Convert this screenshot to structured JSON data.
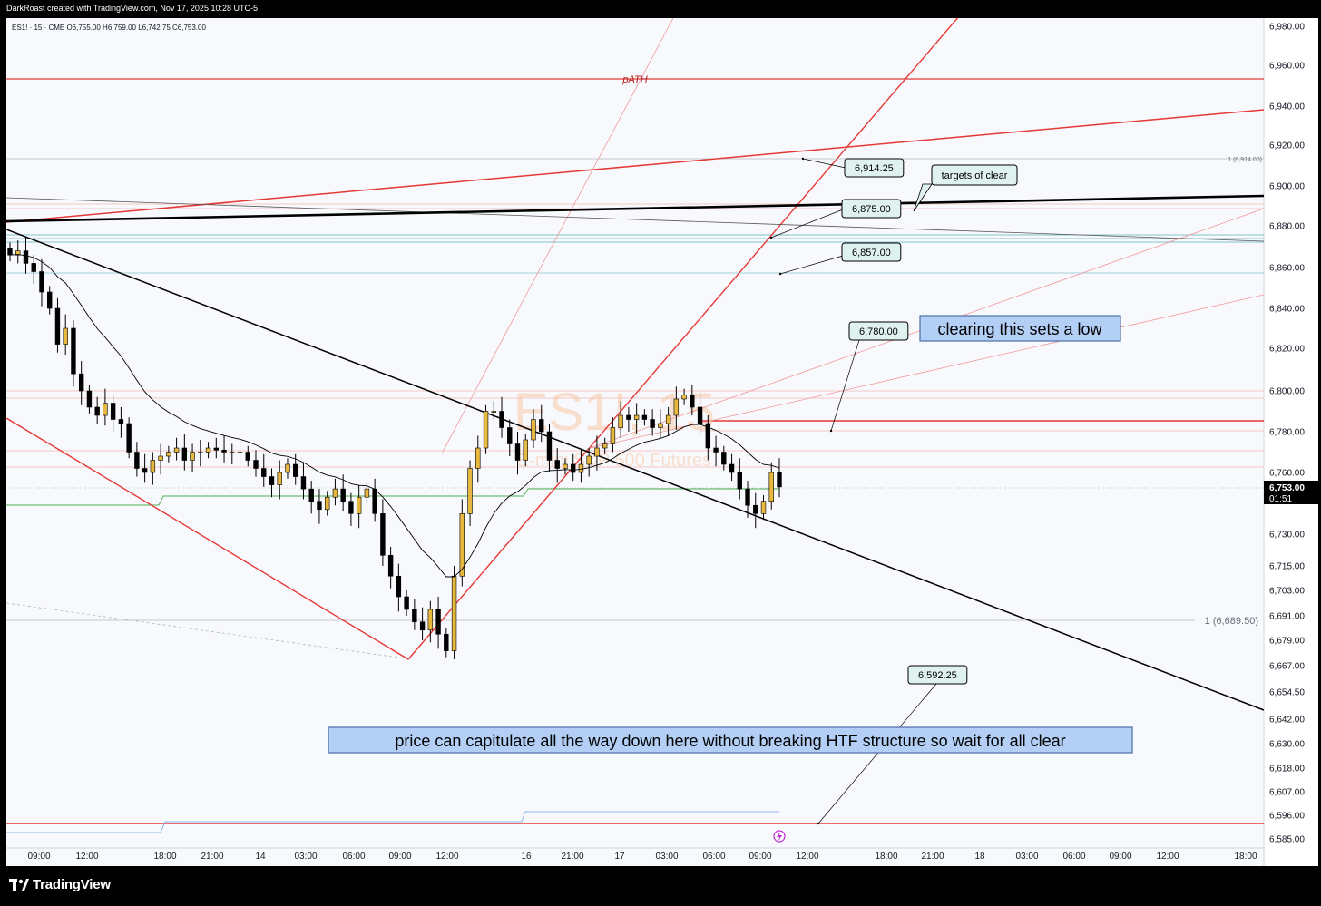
{
  "header": {
    "credit": "DarkRoast created with TradingView.com, Nov 17, 2025 10:28 UTC-5"
  },
  "legend": {
    "ohlc": "ES1! · 15 · CME  O6,755.00  H6,759.00  L6,742.75  C6,753.00"
  },
  "watermark": {
    "symbol": "ES1!, 15",
    "name": "E-mini S&P 500 Futures"
  },
  "footer": {
    "brand": "TradingView"
  },
  "colors": {
    "up": "#e6b840",
    "down": "#000000",
    "red": "#e53935",
    "teal": "#a8d4d8",
    "label_bg": "#e0f2ef",
    "note_bg": "#b3cff5"
  },
  "chart_data": {
    "type": "candlestick",
    "instrument": "ES1!",
    "interval": "15",
    "exchange": "CME",
    "ylim": [
      6585,
      6980
    ],
    "y_ticks": [
      "6,980.00",
      "6,960.00",
      "6,940.00",
      "6,920.00",
      "6,900.00",
      "6,880.00",
      "6,860.00",
      "6,840.00",
      "6,820.00",
      "6,800.00",
      "6,780.00",
      "6,760.00",
      "6,730.00",
      "6,715.00",
      "6,703.00",
      "6,691.00",
      "6,679.00",
      "6,667.00",
      "6,654.50",
      "6,642.00",
      "6,630.00",
      "6,618.00",
      "6,607.00",
      "6,596.00",
      "6,585.00"
    ],
    "x_ticks": [
      "09:00",
      "12:00",
      "18:00",
      "21:00",
      "14",
      "03:00",
      "06:00",
      "09:00",
      "12:00",
      "16",
      "21:00",
      "17",
      "03:00",
      "06:00",
      "09:00",
      "12:00",
      "18:00",
      "21:00",
      "18",
      "03:00",
      "06:00",
      "09:00",
      "12:00",
      "18:00"
    ],
    "last_price": "6,753.00",
    "countdown": "01:51",
    "close_path": [
      6866,
      6868,
      6862,
      6858,
      6848,
      6840,
      6822,
      6830,
      6808,
      6800,
      6792,
      6788,
      6794,
      6786,
      6784,
      6770,
      6762,
      6760,
      6766,
      6768,
      6770,
      6772,
      6766,
      6770,
      6770,
      6772,
      6771,
      6770,
      6770,
      6770,
      6766,
      6762,
      6758,
      6754,
      6760,
      6764,
      6758,
      6752,
      6746,
      6742,
      6748,
      6752,
      6746,
      6740,
      6748,
      6752,
      6740,
      6720,
      6710,
      6700,
      6694,
      6688,
      6684,
      6694,
      6682,
      6674,
      6710,
      6740,
      6762,
      6772,
      6790,
      6790,
      6782,
      6774,
      6766,
      6776,
      6786,
      6780,
      6766,
      6762,
      6764,
      6760,
      6764,
      6768,
      6772,
      6774,
      6782,
      6788,
      6786,
      6788,
      6786,
      6782,
      6784,
      6788,
      6796,
      6798,
      6792,
      6784,
      6772,
      6770,
      6764,
      6760,
      6752,
      6744,
      6740,
      6746,
      6760,
      6753
    ],
    "price_labels": [
      "6,914.25",
      "6,875.00",
      "6,857.00",
      "6,780.00",
      "6,592.25"
    ],
    "fib_label": "1 (6,689.50)",
    "fib_label_small": "1 (6,914.00)",
    "level_label": "pATH",
    "notes": [
      "targets of clear",
      "clearing this sets a low",
      "price can capitulate all the way down here without breaking HTF structure so wait for all clear"
    ]
  }
}
